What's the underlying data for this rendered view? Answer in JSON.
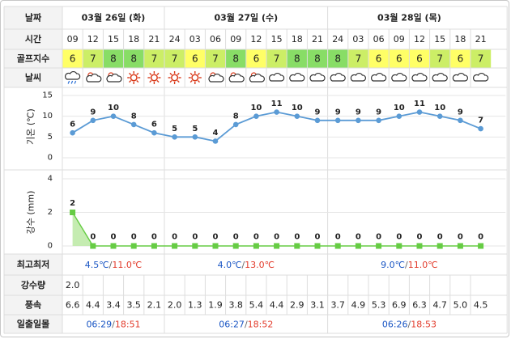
{
  "labels": {
    "date": "날짜",
    "time": "시간",
    "golf_index": "골프지수",
    "weather": "날씨",
    "high_low": "최고최저",
    "precip": "강수량",
    "wind": "풍속",
    "sunrise_sunset": "일출일몰",
    "temp_axis": "기온 (℃)",
    "rain_axis": "강수 (mm)"
  },
  "days": [
    {
      "label": "03월 26일 (화)",
      "low": "4.5℃",
      "high": "11.0℃",
      "sunrise": "06:29",
      "sunset": "18:51"
    },
    {
      "label": "03월 27일 (수)",
      "low": "4.0℃",
      "high": "13.0℃",
      "sunrise": "06:27",
      "sunset": "18:52"
    },
    {
      "label": "03월 28일 (목)",
      "low": "9.0℃",
      "high": "11.0℃",
      "sunrise": "06:26",
      "sunset": "18:53"
    }
  ],
  "slot_count_per_day": [
    5,
    8,
    8
  ],
  "hours": [
    "09",
    "12",
    "15",
    "18",
    "21",
    "24",
    "03",
    "06",
    "09",
    "12",
    "15",
    "18",
    "21",
    "24",
    "03",
    "06",
    "09",
    "12",
    "15",
    "18",
    "21"
  ],
  "golf_index": [
    "6",
    "7",
    "8",
    "8",
    "7",
    "7",
    "6",
    "7",
    "8",
    "6",
    "7",
    "8",
    "8",
    "8",
    "7",
    "6",
    "6",
    "6",
    "7",
    "6",
    "7"
  ],
  "golf_colors": {
    "6": "#ffff66",
    "7": "#ccee66",
    "8": "#88dd66"
  },
  "weather_icons": [
    "rain-cloud-icon",
    "sun-cloud-icon",
    "sun-cloud-icon",
    "sun-icon",
    "sun-icon",
    "sun-icon",
    "sun-icon",
    "sun-cloud-icon",
    "sun-cloud-icon",
    "sun-cloud-icon",
    "cloud-icon",
    "cloud-icon",
    "cloud-icon",
    "cloud-icon",
    "cloud-icon",
    "cloud-icon",
    "cloud-icon",
    "cloud-icon",
    "cloud-icon",
    "cloud-icon",
    "cloud-icon"
  ],
  "precip": [
    "2.0",
    "",
    "",
    "",
    "",
    "",
    "",
    "",
    "",
    "",
    "",
    "",
    "",
    "",
    "",
    "",
    "",
    "",
    "",
    "",
    ""
  ],
  "wind": [
    "6.6",
    "4.4",
    "3.4",
    "3.5",
    "2.1",
    "2.0",
    "1.3",
    "1.9",
    "3.8",
    "5.4",
    "4.4",
    "2.9",
    "3.1",
    "3.7",
    "4.9",
    "5.3",
    "6.9",
    "6.3",
    "4.7",
    "5.0",
    "4.5"
  ],
  "temp_chart": {
    "type": "line",
    "ylim": [
      0,
      15
    ],
    "yticks": [
      "0",
      "5",
      "10",
      "15"
    ],
    "values": [
      6,
      9,
      10,
      8,
      6,
      5,
      5,
      4,
      8,
      10,
      11,
      10,
      9,
      9,
      9,
      9,
      10,
      11,
      10,
      9,
      7
    ],
    "color": "#5b9bd5"
  },
  "rain_chart": {
    "type": "area",
    "ylim": [
      0,
      4
    ],
    "yticks": [
      "0",
      "2",
      "4"
    ],
    "values": [
      2,
      0,
      0,
      0,
      0,
      0,
      0,
      0,
      0,
      0,
      0,
      0,
      0,
      0,
      0,
      0,
      0,
      0,
      0,
      0,
      0
    ],
    "color": "#66cc44"
  },
  "chart_data": [
    {
      "type": "line",
      "x": [
        "09",
        "12",
        "15",
        "18",
        "21",
        "24",
        "03",
        "06",
        "09",
        "12",
        "15",
        "18",
        "21",
        "24",
        "03",
        "06",
        "09",
        "12",
        "15",
        "18",
        "21"
      ],
      "values": [
        6,
        9,
        10,
        8,
        6,
        5,
        5,
        4,
        8,
        10,
        11,
        10,
        9,
        9,
        9,
        9,
        10,
        11,
        10,
        9,
        7
      ],
      "ylabel": "기온 (℃)",
      "ylim": [
        0,
        15
      ],
      "yticks": [
        "0",
        "5",
        "10",
        "15"
      ]
    },
    {
      "type": "area",
      "x": [
        "09",
        "12",
        "15",
        "18",
        "21",
        "24",
        "03",
        "06",
        "09",
        "12",
        "15",
        "18",
        "21",
        "24",
        "03",
        "06",
        "09",
        "12",
        "15",
        "18",
        "21"
      ],
      "values": [
        2,
        0,
        0,
        0,
        0,
        0,
        0,
        0,
        0,
        0,
        0,
        0,
        0,
        0,
        0,
        0,
        0,
        0,
        0,
        0,
        0
      ],
      "ylabel": "강수 (mm)",
      "ylim": [
        0,
        4
      ],
      "yticks": [
        "0",
        "2",
        "4"
      ]
    }
  ],
  "colors": {
    "grid": "#dddddd",
    "label_col_bg": "#f3f3f3",
    "temp_low": "#1a56c4",
    "temp_high": "#e23a2a",
    "sunset": "#e23a2a",
    "sunrise": "#1a56c4"
  }
}
